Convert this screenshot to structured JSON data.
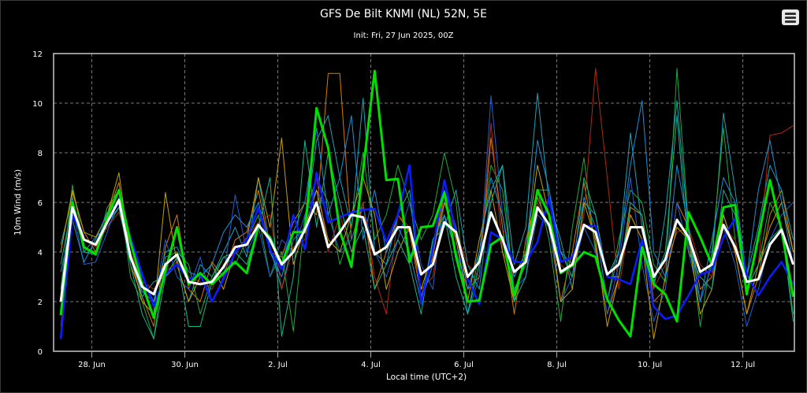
{
  "header": {
    "menu_icon": "hamburger-menu-icon"
  },
  "chart_data": {
    "type": "line",
    "title": "GFS De Bilt KNMI (NL) 52N, 5E",
    "subtitle": "Init: Fri, 27 Jun 2025, 00Z",
    "xlabel": "Local time (UTC+2)",
    "ylabel": "10m Wind (m/s)",
    "ylim": [
      0,
      12
    ],
    "yticks": [
      "0",
      "2",
      "4",
      "6",
      "8",
      "10",
      "12"
    ],
    "x_start": "27 Jun 08:00 local",
    "step_hours": 6,
    "xlim_hours": [
      -3.7,
      378.6
    ],
    "xticks": [
      {
        "label": "28. Jun",
        "hour": 16
      },
      {
        "label": "30. Jun",
        "hour": 64
      },
      {
        "label": "2. Jul",
        "hour": 112
      },
      {
        "label": "4. Jul",
        "hour": 160
      },
      {
        "label": "6. Jul",
        "hour": 208
      },
      {
        "label": "8. Jul",
        "hour": 256
      },
      {
        "label": "10. Jul",
        "hour": 304
      },
      {
        "label": "12. Jul",
        "hour": 352
      }
    ],
    "grid": true,
    "background": "#000000",
    "members": [
      {
        "color": "#d97a00",
        "values": [
          1.5,
          6.4,
          4.8,
          4.0,
          5.5,
          6.8,
          3.5,
          2.2,
          1.0,
          4.2,
          5.5,
          2.5,
          2.0,
          3.6,
          3.0,
          4.5,
          4.8,
          6.5,
          4.0,
          3.8,
          5.2,
          6.0,
          5.5,
          11.2,
          11.2,
          4.5,
          6.0,
          2.5,
          4.0,
          5.5,
          4.8,
          2.2,
          3.8,
          6.5,
          5.0,
          2.5,
          3.0,
          8.6,
          5.0,
          1.5,
          4.5,
          6.2,
          5.0,
          2.0,
          4.0,
          6.8,
          4.2,
          1.5,
          3.0,
          5.8,
          5.5,
          2.0,
          2.5,
          6.0,
          5.0,
          2.5,
          3.0,
          5.5,
          4.0,
          1.5,
          3.0,
          5.5,
          6.5,
          4.0
        ]
      },
      {
        "color": "#1aa3b8",
        "values": [
          4.3,
          6.2,
          4.0,
          4.6,
          5.0,
          5.8,
          4.0,
          2.2,
          2.8,
          3.0,
          3.5,
          2.0,
          3.5,
          3.0,
          4.0,
          5.0,
          3.8,
          7.0,
          4.2,
          2.5,
          4.5,
          5.0,
          8.5,
          9.5,
          7.0,
          5.0,
          10.2,
          4.0,
          3.5,
          5.5,
          6.5,
          2.0,
          4.5,
          5.0,
          6.5,
          3.5,
          2.5,
          6.5,
          7.5,
          3.5,
          5.0,
          10.4,
          6.0,
          4.5,
          2.5,
          6.0,
          5.5,
          3.0,
          4.0,
          8.8,
          5.0,
          2.5,
          5.5,
          10.1,
          4.8,
          2.0,
          3.5,
          9.6,
          6.5,
          3.0,
          5.0,
          7.5,
          6.5,
          4.5
        ]
      },
      {
        "color": "#1faa3a",
        "values": [
          2.5,
          6.7,
          4.2,
          4.0,
          5.8,
          6.5,
          3.0,
          2.0,
          0.5,
          3.8,
          4.0,
          3.5,
          1.5,
          3.0,
          3.8,
          3.5,
          4.5,
          5.5,
          3.0,
          4.0,
          0.8,
          5.5,
          7.0,
          6.0,
          3.5,
          5.0,
          8.0,
          4.5,
          5.5,
          7.5,
          6.0,
          4.5,
          5.5,
          8.0,
          6.0,
          1.5,
          4.0,
          7.5,
          6.5,
          2.5,
          3.5,
          6.5,
          4.5,
          1.2,
          5.0,
          7.8,
          4.0,
          2.0,
          4.5,
          6.5,
          6.0,
          3.5,
          2.8,
          11.4,
          5.0,
          1.0,
          4.0,
          9.0,
          4.5,
          2.5,
          3.5,
          6.0,
          5.0,
          1.5
        ]
      },
      {
        "color": "#b02a10",
        "values": [
          1.0,
          5.5,
          4.5,
          4.2,
          5.0,
          5.6,
          4.0,
          2.8,
          2.5,
          3.2,
          3.6,
          3.0,
          2.8,
          2.5,
          3.5,
          4.0,
          4.6,
          5.2,
          5.5,
          2.5,
          4.2,
          4.5,
          7.0,
          4.0,
          5.5,
          4.0,
          6.0,
          3.0,
          1.5,
          5.5,
          5.0,
          2.5,
          3.0,
          6.0,
          4.8,
          3.5,
          3.0,
          9.2,
          4.0,
          3.0,
          4.0,
          6.0,
          5.0,
          3.5,
          3.0,
          5.5,
          11.4,
          7.0,
          2.5,
          5.5,
          4.5,
          2.5,
          3.5,
          4.8,
          5.0,
          3.5,
          3.0,
          5.0,
          4.5,
          2.5,
          3.5,
          8.7,
          8.8,
          9.1
        ]
      },
      {
        "color": "#1f5fd0",
        "values": [
          0.5,
          5.8,
          3.5,
          3.6,
          4.8,
          6.2,
          4.3,
          3.0,
          2.0,
          4.5,
          3.0,
          2.5,
          3.8,
          2.0,
          3.0,
          6.3,
          4.0,
          5.0,
          3.0,
          4.5,
          4.0,
          5.5,
          6.5,
          5.5,
          4.0,
          4.5,
          5.8,
          4.0,
          3.0,
          4.5,
          6.0,
          3.5,
          2.5,
          6.5,
          5.0,
          1.5,
          3.0,
          10.3,
          5.5,
          2.5,
          3.0,
          5.5,
          5.0,
          2.0,
          3.0,
          5.0,
          4.0,
          1.5,
          3.5,
          7.0,
          3.5,
          1.2,
          2.5,
          6.0,
          4.0,
          2.0,
          3.5,
          5.0,
          3.5,
          1.0,
          2.5,
          4.5,
          5.5,
          6.0
        ]
      },
      {
        "color": "#c8a000",
        "values": [
          4.0,
          6.5,
          4.8,
          4.6,
          5.5,
          7.2,
          3.8,
          2.0,
          1.5,
          6.4,
          3.5,
          2.0,
          3.0,
          3.5,
          2.5,
          4.0,
          4.5,
          7.0,
          5.0,
          8.6,
          3.5,
          5.0,
          6.5,
          4.5,
          4.0,
          5.5,
          7.0,
          5.5,
          2.5,
          4.0,
          5.0,
          2.5,
          4.0,
          6.0,
          4.5,
          2.0,
          4.5,
          6.5,
          4.0,
          2.0,
          4.0,
          7.5,
          5.5,
          2.0,
          2.5,
          6.0,
          4.5,
          1.0,
          3.0,
          5.5,
          4.5,
          0.5,
          3.0,
          5.0,
          4.5,
          1.5,
          2.5,
          5.5,
          4.0,
          1.5,
          3.5,
          5.0,
          6.0,
          4.0
        ]
      },
      {
        "color": "#14b48c",
        "values": [
          3.5,
          6.0,
          4.0,
          3.9,
          5.2,
          5.8,
          3.5,
          1.5,
          0.5,
          3.0,
          3.8,
          1.0,
          1.0,
          2.8,
          3.8,
          4.0,
          3.5,
          5.0,
          7.0,
          0.6,
          3.0,
          8.5,
          5.0,
          8.0,
          6.0,
          4.0,
          5.0,
          2.5,
          3.5,
          4.5,
          3.5,
          1.5,
          4.5,
          5.5,
          3.0,
          1.5,
          3.5,
          6.0,
          7.5,
          2.0,
          3.0,
          6.5,
          6.5,
          4.0,
          3.0,
          7.0,
          5.5,
          3.0,
          3.0,
          6.0,
          5.5,
          2.8,
          4.0,
          9.5,
          4.0,
          3.0,
          2.5,
          6.5,
          5.5,
          2.5,
          3.5,
          4.5,
          5.0,
          1.2
        ]
      },
      {
        "color": "#1b8fd8",
        "values": [
          3.2,
          5.3,
          3.6,
          4.5,
          5.6,
          6.0,
          3.7,
          2.4,
          2.0,
          4.0,
          4.2,
          3.2,
          3.0,
          3.5,
          4.8,
          5.5,
          5.0,
          6.0,
          4.0,
          3.0,
          4.8,
          6.0,
          9.0,
          5.5,
          7.0,
          9.5,
          4.5,
          6.5,
          4.0,
          5.0,
          4.0,
          2.0,
          3.5,
          5.5,
          4.0,
          2.5,
          4.0,
          7.0,
          5.5,
          3.0,
          4.0,
          8.5,
          6.5,
          4.0,
          3.5,
          6.2,
          5.0,
          2.0,
          4.0,
          7.5,
          10.1,
          4.0,
          3.0,
          7.5,
          5.0,
          2.0,
          4.5,
          7.0,
          6.0,
          3.0,
          6.5,
          8.5,
          6.0,
          3.5
        ]
      }
    ],
    "operational": {
      "color": "#0a1eff",
      "values": [
        0.5,
        5.5,
        4.5,
        4.3,
        5.2,
        6.0,
        4.6,
        3.1,
        1.8,
        3.1,
        3.5,
        2.9,
        3.1,
        2.0,
        2.9,
        4.0,
        4.5,
        5.8,
        4.1,
        3.3,
        5.5,
        4.1,
        7.2,
        5.2,
        5.4,
        5.6,
        5.7,
        5.75,
        4.4,
        5.5,
        7.5,
        1.9,
        4.1,
        6.9,
        4.75,
        2.9,
        1.9,
        4.8,
        4.5,
        3.6,
        3.6,
        4.4,
        6.2,
        3.6,
        3.8,
        5.05,
        5.05,
        3.0,
        2.9,
        2.7,
        4.5,
        1.8,
        1.3,
        1.45,
        2.25,
        3.1,
        3.25,
        4.6,
        5.35,
        3.1,
        2.25,
        3.0,
        3.6,
        2.7
      ]
    },
    "control": {
      "color": "#00e000",
      "values": [
        1.45,
        6.0,
        4.2,
        3.9,
        5.4,
        6.5,
        4.4,
        2.7,
        1.35,
        3.25,
        5.0,
        2.7,
        3.15,
        2.7,
        3.15,
        3.6,
        3.15,
        5.05,
        4.6,
        3.5,
        4.8,
        4.8,
        9.8,
        8.2,
        4.85,
        3.4,
        7.3,
        11.3,
        6.9,
        6.95,
        3.6,
        5.0,
        5.05,
        6.4,
        3.8,
        2.0,
        2.05,
        4.3,
        4.6,
        2.25,
        3.8,
        6.5,
        5.5,
        3.15,
        3.45,
        4.0,
        3.8,
        2.1,
        1.25,
        0.6,
        4.2,
        2.7,
        2.3,
        1.2,
        5.6,
        4.6,
        3.5,
        5.8,
        5.9,
        2.3,
        4.6,
        6.9,
        4.85,
        2.2
      ]
    },
    "mean": {
      "color": "#ffffff",
      "values": [
        2.0,
        5.8,
        4.5,
        4.3,
        5.2,
        6.1,
        3.8,
        2.6,
        2.3,
        3.5,
        3.9,
        2.8,
        2.7,
        2.8,
        3.4,
        4.2,
        4.3,
        5.1,
        4.5,
        3.5,
        4.0,
        4.9,
        6.0,
        4.2,
        4.8,
        5.5,
        5.4,
        3.9,
        4.2,
        5.0,
        5.0,
        3.1,
        3.5,
        5.2,
        4.8,
        3.0,
        3.6,
        5.6,
        4.5,
        3.2,
        3.6,
        5.8,
        5.1,
        3.2,
        3.5,
        5.1,
        4.8,
        3.1,
        3.5,
        5.0,
        5.0,
        3.0,
        3.7,
        5.3,
        4.6,
        3.2,
        3.5,
        5.1,
        4.2,
        2.8,
        2.9,
        4.3,
        4.9,
        3.5
      ]
    }
  }
}
